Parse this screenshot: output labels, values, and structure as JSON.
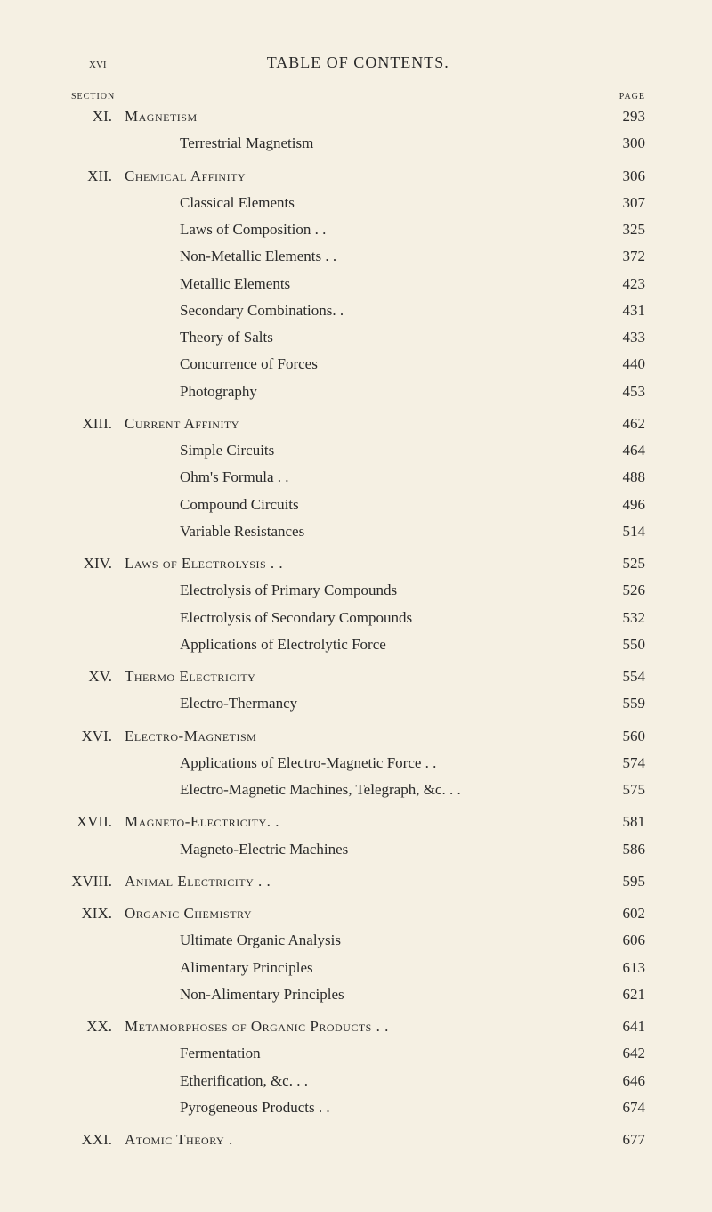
{
  "header": {
    "page_roman": "xvi",
    "title": "TABLE OF CONTENTS.",
    "col_section": "SECTION",
    "col_page": "PAGE"
  },
  "sections": [
    {
      "num": "XI.",
      "title": "Magnetism",
      "page": "293",
      "subs": [
        {
          "title": "Terrestrial Magnetism",
          "page": "300"
        }
      ]
    },
    {
      "num": "XII.",
      "title": "Chemical Affinity",
      "page": "306",
      "subs": [
        {
          "title": "Classical Elements",
          "page": "307"
        },
        {
          "title": "Laws of Composition . .",
          "page": "325"
        },
        {
          "title": "Non-Metallic Elements . .",
          "page": "372"
        },
        {
          "title": "Metallic Elements",
          "page": "423"
        },
        {
          "title": "Secondary Combinations. .",
          "page": "431"
        },
        {
          "title": "Theory of Salts",
          "page": "433"
        },
        {
          "title": "Concurrence of Forces",
          "page": "440"
        },
        {
          "title": "Photography",
          "page": "453"
        }
      ]
    },
    {
      "num": "XIII.",
      "title": "Current Affinity",
      "page": "462",
      "subs": [
        {
          "title": "Simple Circuits",
          "page": "464"
        },
        {
          "title": "Ohm's Formula . .",
          "page": "488"
        },
        {
          "title": "Compound Circuits",
          "page": "496"
        },
        {
          "title": "Variable Resistances",
          "page": "514"
        }
      ]
    },
    {
      "num": "XIV.",
      "title": "Laws of Electrolysis . .",
      "page": "525",
      "subs": [
        {
          "title": "Electrolysis of Primary Compounds",
          "page": "526"
        },
        {
          "title": "Electrolysis of Secondary Compounds",
          "page": "532"
        },
        {
          "title": "Applications of Electrolytic Force",
          "page": "550"
        }
      ]
    },
    {
      "num": "XV.",
      "title": "Thermo Electricity",
      "page": "554",
      "subs": [
        {
          "title": "Electro-Thermancy",
          "page": "559"
        }
      ]
    },
    {
      "num": "XVI.",
      "title": "Electro-Magnetism",
      "page": "560",
      "subs": [
        {
          "title": "Applications of Electro-Magnetic Force . .",
          "page": "574"
        },
        {
          "title": "Electro-Magnetic Machines, Telegraph, &c. . .",
          "page": "575"
        }
      ]
    },
    {
      "num": "XVII.",
      "title": "Magneto-Electricity. .",
      "page": "581",
      "subs": [
        {
          "title": "Magneto-Electric Machines",
          "page": "586"
        }
      ]
    },
    {
      "num": "XVIII.",
      "title": "Animal Electricity . .",
      "page": "595",
      "subs": []
    },
    {
      "num": "XIX.",
      "title": "Organic Chemistry",
      "page": "602",
      "subs": [
        {
          "title": "Ultimate Organic Analysis",
          "page": "606"
        },
        {
          "title": "Alimentary Principles",
          "page": "613"
        },
        {
          "title": "Non-Alimentary Principles",
          "page": "621"
        }
      ]
    },
    {
      "num": "XX.",
      "title": "Metamorphoses of Organic Products . .",
      "page": "641",
      "subs": [
        {
          "title": "Fermentation",
          "page": "642"
        },
        {
          "title": "Etherification, &c.  . .",
          "page": "646"
        },
        {
          "title": "Pyrogeneous Products . .",
          "page": "674"
        }
      ]
    },
    {
      "num": "XXI.",
      "title": "Atomic Theory .",
      "page": "677",
      "subs": []
    }
  ]
}
